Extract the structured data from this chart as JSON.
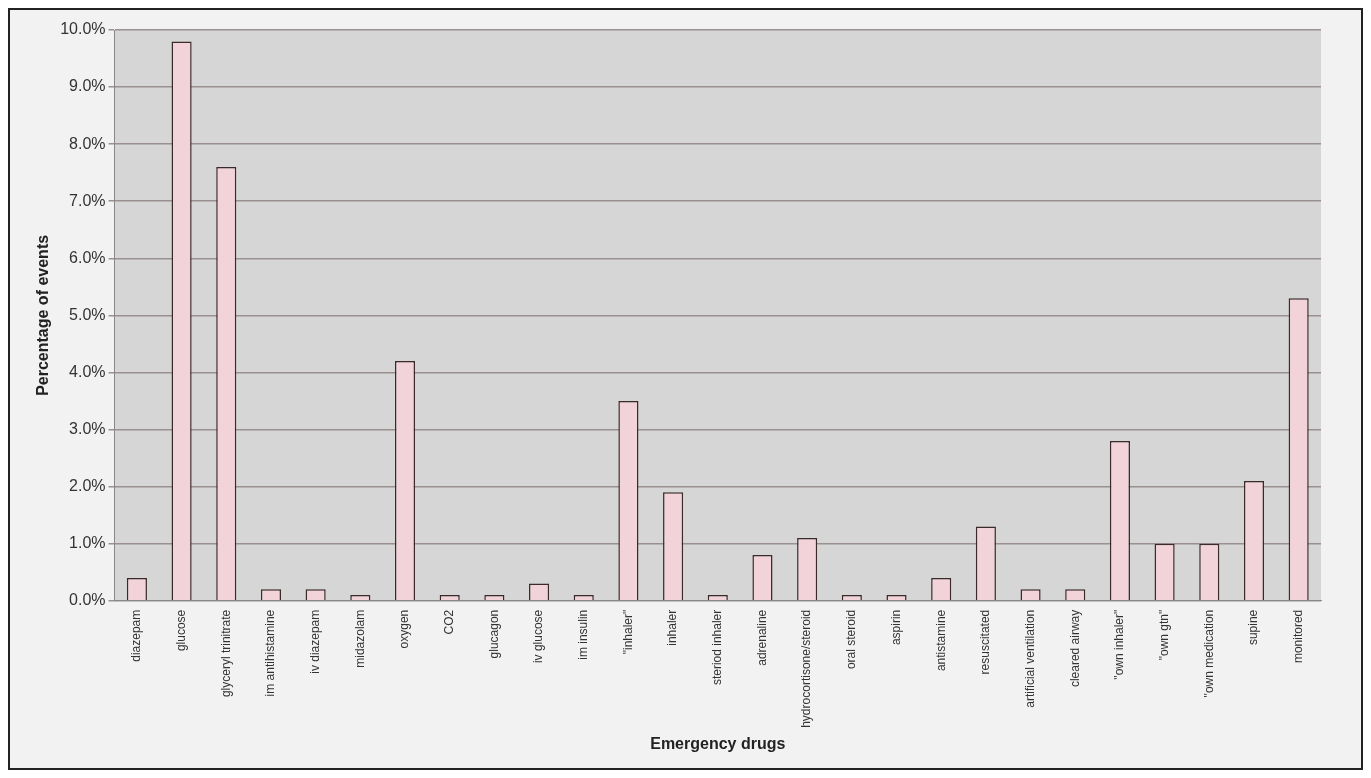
{
  "chart_data": {
    "type": "bar",
    "xlabel": "Emergency drugs",
    "ylabel": "Percentage of events",
    "categories": [
      "diazepam",
      "glucose",
      "glyceryl trinitrate",
      "im antihistamine",
      "iv diazepam",
      "midazolam",
      "oxygen",
      "CO2",
      "glucagon",
      "iv glucose",
      "im insulin",
      "\"inhaler\"",
      "inhaler",
      "steriod inhaler",
      "adrenaline",
      "hydrocortisone/steroid",
      "oral steroid",
      "aspirin",
      "antistamine",
      "resuscitated",
      "artificial ventilation",
      "cleared airway",
      "\"own inhaler\"",
      "\"own gtn\"",
      "\"own medication",
      "supine",
      "monitored"
    ],
    "values": [
      0.4,
      9.8,
      7.6,
      0.2,
      0.2,
      0.1,
      4.2,
      0.1,
      0.1,
      0.3,
      0.1,
      3.5,
      1.9,
      0.1,
      0.8,
      1.1,
      0.1,
      0.1,
      0.4,
      1.3,
      0.2,
      0.2,
      2.8,
      1.0,
      1.0,
      2.1,
      5.3
    ],
    "color": "#f2d3da",
    "ylim": [
      0,
      10
    ],
    "yticks": [
      {
        "value": 0,
        "label": "0.0%"
      },
      {
        "value": 1,
        "label": "1.0%"
      },
      {
        "value": 2,
        "label": "2.0%"
      },
      {
        "value": 3,
        "label": "3.0%"
      },
      {
        "value": 4,
        "label": "4.0%"
      },
      {
        "value": 5,
        "label": "5.0%"
      },
      {
        "value": 6,
        "label": "6.0%"
      },
      {
        "value": 7,
        "label": "7.0%"
      },
      {
        "value": 8,
        "label": "8.0%"
      },
      {
        "value": 9,
        "label": "9.0%"
      },
      {
        "value": 10,
        "label": "10.0%"
      }
    ],
    "grid": "y",
    "legend": false
  }
}
